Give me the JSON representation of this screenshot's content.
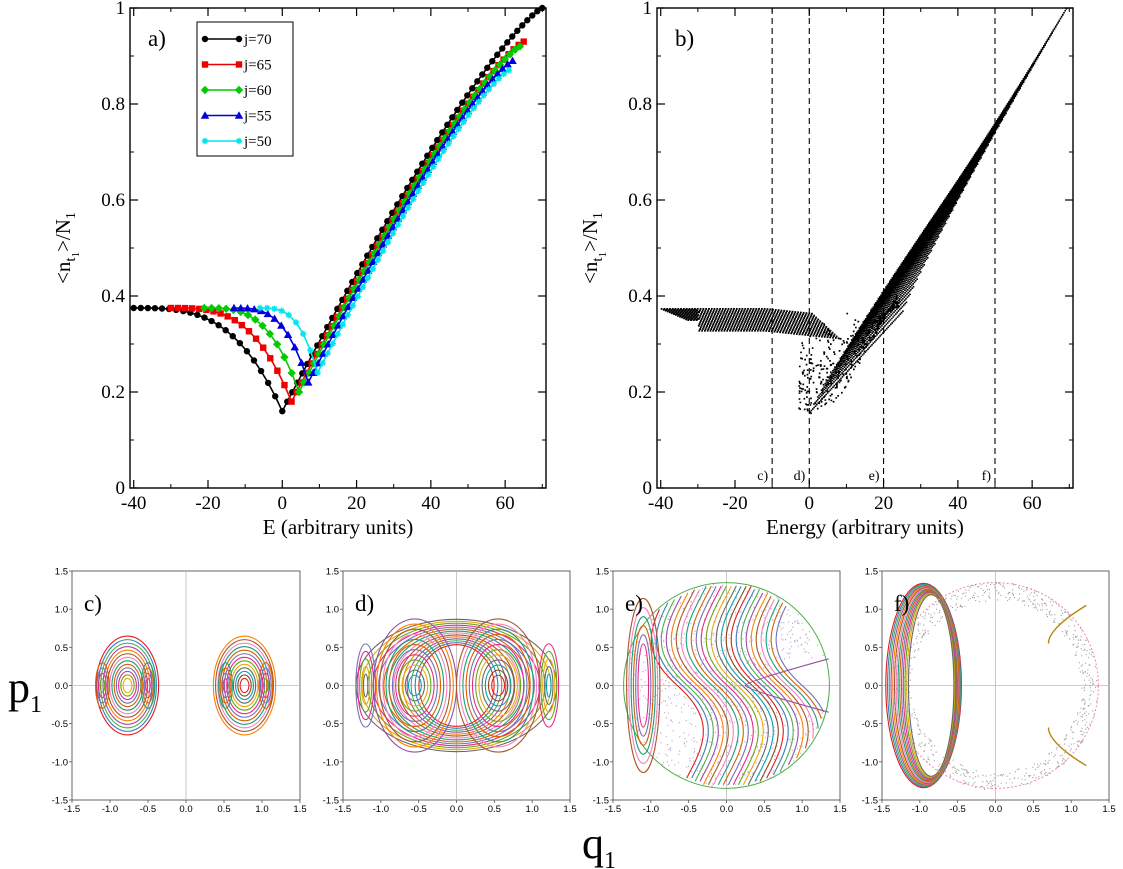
{
  "chart_data": [
    {
      "id": "a",
      "type": "line",
      "panel_label": "a)",
      "xlabel": "E (arbitrary units)",
      "ylabel": "<n_t1>/N_1",
      "xlim": [
        -41,
        71
      ],
      "ylim": [
        0,
        1
      ],
      "xticks": [
        -40,
        -20,
        0,
        20,
        40,
        60
      ],
      "yticks": [
        0,
        0.2,
        0.4,
        0.6,
        0.8,
        1
      ],
      "ytick_labels": [
        "0",
        "0.2",
        "0.4",
        "0.6",
        "0.8",
        "1"
      ],
      "legend_position": "top-left",
      "series": [
        {
          "name": "j=70",
          "color": "#000000",
          "marker": "circle",
          "xmin": -40,
          "xmax": 70,
          "x0": 0,
          "ymin": 0.16,
          "yleft": 0.375,
          "yend": 1.0
        },
        {
          "name": "j=65",
          "color": "#ee0000",
          "marker": "square",
          "xmin": -30,
          "xmax": 65,
          "x0": 2.5,
          "ymin": 0.18,
          "yleft": 0.375,
          "yend": 0.93
        },
        {
          "name": "j=60",
          "color": "#00cc00",
          "marker": "diamond",
          "xmin": -21,
          "xmax": 64,
          "x0": 4.5,
          "ymin": 0.2,
          "yleft": 0.375,
          "yend": 0.92
        },
        {
          "name": "j=55",
          "color": "#0000dd",
          "marker": "triangle",
          "xmin": -13,
          "xmax": 62,
          "x0": 7,
          "ymin": 0.22,
          "yleft": 0.375,
          "yend": 0.89
        },
        {
          "name": "j=50",
          "color": "#00e5ee",
          "marker": "star",
          "xmin": -6,
          "xmax": 61,
          "x0": 9.5,
          "ymin": 0.24,
          "yleft": 0.375,
          "yend": 0.87
        }
      ]
    },
    {
      "id": "b",
      "type": "scatter",
      "panel_label": "b)",
      "xlabel": "Energy (arbitrary units)",
      "ylabel": "<n_t1>/N_1",
      "xlim": [
        -41,
        71
      ],
      "ylim": [
        0,
        1
      ],
      "xticks": [
        -40,
        -20,
        0,
        20,
        40,
        60
      ],
      "yticks": [
        0,
        0.2,
        0.4,
        0.6,
        0.8,
        1
      ],
      "ytick_labels": [
        "0",
        "0.2",
        "0.4",
        "0.6",
        "0.8",
        "1"
      ],
      "vlines": [
        {
          "x": -10,
          "label": "c)"
        },
        {
          "x": 0,
          "label": "d)"
        },
        {
          "x": 20,
          "label": "e)"
        },
        {
          "x": 50,
          "label": "f)"
        }
      ],
      "color": "#000000"
    },
    {
      "id": "c",
      "type": "scatter",
      "panel_label": "c)",
      "shape": "two-islands",
      "xlim": [
        -1.5,
        1.5
      ],
      "ylim": [
        -1.5,
        1.5
      ],
      "xticks": [
        -1.5,
        -1.0,
        -0.5,
        0.0,
        0.5,
        1.0,
        1.5
      ],
      "xtick_labels": [
        "-1.5",
        "-1.0",
        "-0.5",
        "0.0",
        "0.5",
        "1.0",
        "1.5"
      ],
      "yticks": [
        -1.5,
        -1.0,
        -0.5,
        0.0,
        0.5,
        1.0,
        1.5
      ],
      "ytick_labels": [
        "-1.5",
        "-1.0",
        "-0.5",
        "0.0",
        "0.5",
        "1.0",
        "1.5"
      ]
    },
    {
      "id": "d",
      "type": "scatter",
      "panel_label": "d)",
      "shape": "figure-eight",
      "xlim": [
        -1.5,
        1.5
      ],
      "ylim": [
        -1.5,
        1.5
      ],
      "xticks": [
        -1.5,
        -1.0,
        -0.5,
        0.0,
        0.5,
        1.0,
        1.5
      ],
      "xtick_labels": [
        "-1.5",
        "-1.0",
        "-0.5",
        "0.0",
        "0.5",
        "1.0",
        "1.5"
      ],
      "yticks": [
        -1.5,
        -1.0,
        -0.5,
        0.0,
        0.5,
        1.0,
        1.5
      ],
      "ytick_labels": [
        "-1.5",
        "-1.0",
        "-0.5",
        "0.0",
        "0.5",
        "1.0",
        "1.5"
      ]
    },
    {
      "id": "e",
      "type": "scatter",
      "panel_label": "e)",
      "shape": "chaotic-disk",
      "xlim": [
        -1.5,
        1.5
      ],
      "ylim": [
        -1.5,
        1.5
      ],
      "xticks": [
        -1.5,
        -1.0,
        -0.5,
        0.0,
        0.5,
        1.0,
        1.5
      ],
      "xtick_labels": [
        "-1.5",
        "-1.0",
        "-0.5",
        "0.0",
        "0.5",
        "1.0",
        "1.5"
      ],
      "yticks": [
        -1.5,
        -1.0,
        -0.5,
        0.0,
        0.5,
        1.0,
        1.5
      ],
      "ytick_labels": [
        "-1.5",
        "-1.0",
        "-0.5",
        "0.0",
        "0.5",
        "1.0",
        "1.5"
      ]
    },
    {
      "id": "f",
      "type": "scatter",
      "panel_label": "f)",
      "shape": "ring",
      "xlim": [
        -1.5,
        1.5
      ],
      "ylim": [
        -1.5,
        1.5
      ],
      "xticks": [
        -1.5,
        -1.0,
        -0.5,
        0.0,
        0.5,
        1.0,
        1.5
      ],
      "xtick_labels": [
        "-1.5",
        "-1.0",
        "-0.5",
        "0.0",
        "0.5",
        "1.0",
        "1.5"
      ],
      "yticks": [
        -1.5,
        -1.0,
        -0.5,
        0.0,
        0.5,
        1.0,
        1.5
      ],
      "ytick_labels": [
        "-1.5",
        "-1.0",
        "-0.5",
        "0.0",
        "0.5",
        "1.0",
        "1.5"
      ]
    }
  ],
  "shared_labels": {
    "phase_ylabel": "p",
    "phase_ylabel_sub": "1",
    "phase_xlabel": "q",
    "phase_xlabel_sub": "1"
  },
  "palette": [
    "#e41a1c",
    "#377eb8",
    "#4daf4a",
    "#984ea3",
    "#ff7f00",
    "#a65628",
    "#f781bf",
    "#1b9e77",
    "#d95f02",
    "#7570b3",
    "#e7298a",
    "#66a61e",
    "#e6ab02",
    "#666666",
    "#00a0b0",
    "#8b4513"
  ]
}
